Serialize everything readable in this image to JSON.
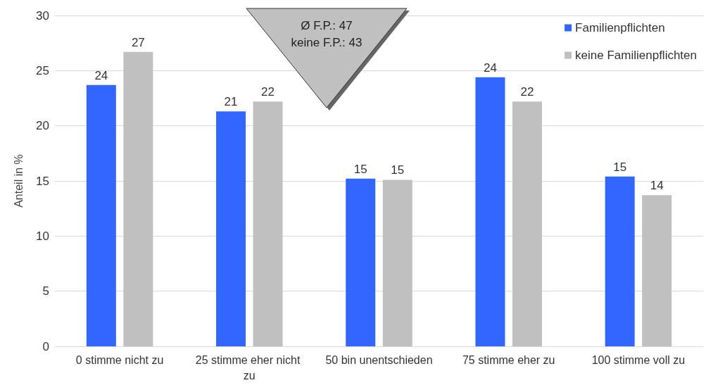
{
  "chart_data": {
    "type": "bar",
    "ylabel": "Anteil in %",
    "categories": [
      "0 stimme nicht zu",
      "25 stimme eher nicht zu",
      "50 bin unentschieden",
      "75 stimme eher zu",
      "100 stimme voll zu"
    ],
    "series": [
      {
        "name": "Familienpflichten",
        "color": "#3366ff",
        "values": [
          23.7,
          21.3,
          15.2,
          24.4,
          15.4
        ],
        "value_labels": [
          "24",
          "21",
          "15",
          "24",
          "15"
        ]
      },
      {
        "name": "keine Familienpflichten",
        "color": "#c0c0c0",
        "values": [
          26.7,
          22.2,
          15.1,
          22.2,
          13.7
        ],
        "value_labels": [
          "27",
          "22",
          "15",
          "22",
          "14"
        ]
      }
    ],
    "ylim": [
      0,
      30
    ],
    "yticks": [
      0,
      5,
      10,
      15,
      20,
      25,
      30
    ],
    "grid": "y",
    "legend": "top right",
    "annotations": [
      "Ø F.P.: 47",
      "keine F.P.: 43"
    ]
  }
}
